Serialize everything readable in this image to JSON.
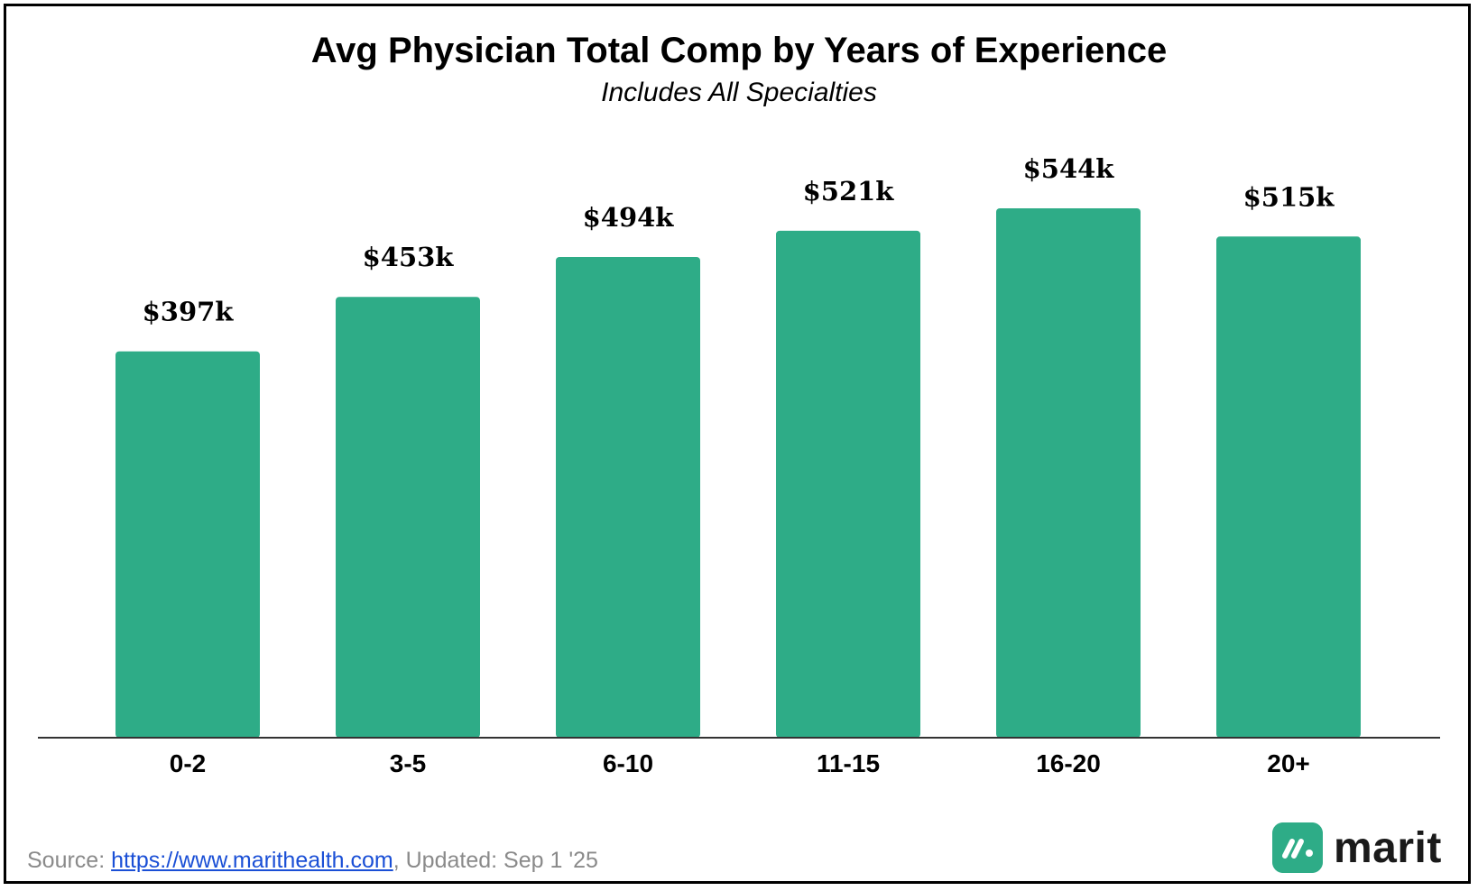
{
  "chart_data": {
    "type": "bar",
    "title": "Avg Physician Total Comp by Years of Experience",
    "subtitle": "Includes All Specialties",
    "categories": [
      "0-2",
      "3-5",
      "6-10",
      "11-15",
      "16-20",
      "20+"
    ],
    "values": [
      397,
      453,
      494,
      521,
      544,
      515
    ],
    "data_labels": [
      "$397k",
      "$453k",
      "$494k",
      "$521k",
      "$544k",
      "$515k"
    ],
    "ylim": [
      0,
      544
    ],
    "grid": false,
    "colors": {
      "bar": "#2eac87",
      "axis": "#333333"
    }
  },
  "footer": {
    "source_prefix": "Source: ",
    "source_link": "https://www.marithealth.com",
    "source_suffix": ", Updated: Sep 1 '25"
  },
  "brand": {
    "name": "marit",
    "icon": "marit-logo-icon",
    "color": "#2eac87"
  }
}
